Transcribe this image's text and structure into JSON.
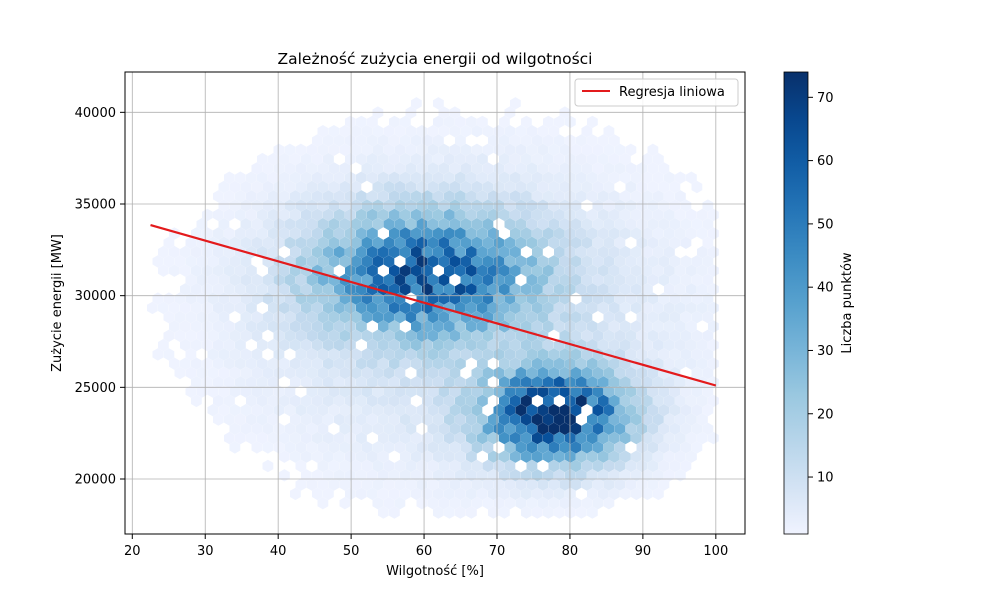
{
  "chart_data": {
    "type": "hexbin",
    "title": "Zależność zużycia energii od wilgotności",
    "xlabel": "Wilgotność [%]",
    "ylabel": "Zużycie energii [MW]",
    "xlim": [
      19,
      104
    ],
    "ylim": [
      17000,
      42200
    ],
    "xticks": [
      20,
      30,
      40,
      50,
      60,
      70,
      80,
      90,
      100
    ],
    "yticks": [
      20000,
      25000,
      30000,
      35000,
      40000
    ],
    "grid": true,
    "colormap": "Blues",
    "colorbar": {
      "label": "Liczba punktów",
      "range": [
        1,
        74
      ],
      "ticks": [
        10,
        20,
        30,
        40,
        50,
        60,
        70
      ]
    },
    "density_clusters": [
      {
        "x_center": 78,
        "y_center": 23500,
        "x_spread": 6.5,
        "y_spread": 1700,
        "peak_count": 72
      },
      {
        "x_center": 60,
        "y_center": 31200,
        "x_spread": 10,
        "y_spread": 2200,
        "peak_count": 52
      },
      {
        "x_center": 65,
        "y_center": 29000,
        "x_spread": 20,
        "y_spread": 5500,
        "peak_count": 10
      }
    ],
    "x_data_range": [
      22,
      100
    ],
    "y_data_range": [
      18000,
      41000
    ],
    "series": [
      {
        "name": "Regresja liniowa",
        "type": "line",
        "color": "#e31a1c",
        "x": [
          22.5,
          100
        ],
        "y": [
          33850,
          25100
        ]
      }
    ],
    "legend_position": "top-right",
    "colors": {
      "line": "#e31a1c",
      "grid": "#b0b0b0",
      "axes": "#000000"
    }
  }
}
